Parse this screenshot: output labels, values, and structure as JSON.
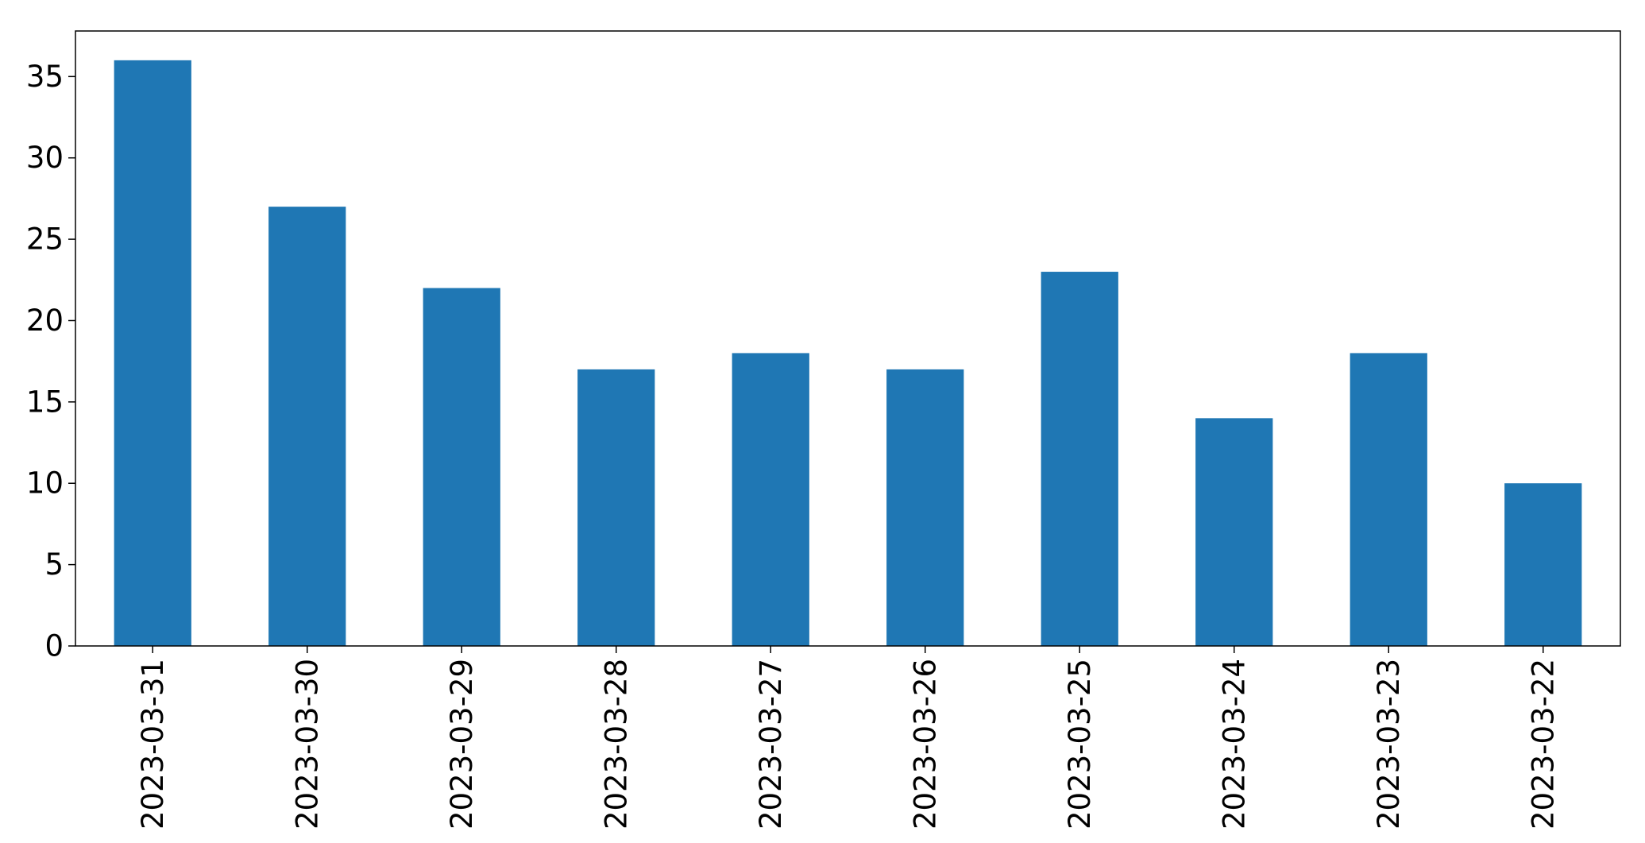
{
  "chart_data": {
    "type": "bar",
    "title": "",
    "xlabel": "",
    "ylabel": "",
    "categories": [
      "2023-03-31",
      "2023-03-30",
      "2023-03-29",
      "2023-03-28",
      "2023-03-27",
      "2023-03-26",
      "2023-03-25",
      "2023-03-24",
      "2023-03-23",
      "2023-03-22"
    ],
    "values": [
      36,
      27,
      22,
      17,
      18,
      17,
      23,
      14,
      18,
      10
    ],
    "ylim": [
      0,
      37.8
    ],
    "yticks": [
      "0",
      "5",
      "10",
      "15",
      "20",
      "25",
      "30",
      "35"
    ],
    "grid": false,
    "legend": "none",
    "bar_color": "#1f77b4",
    "x_tick_rotation": "vertical"
  }
}
